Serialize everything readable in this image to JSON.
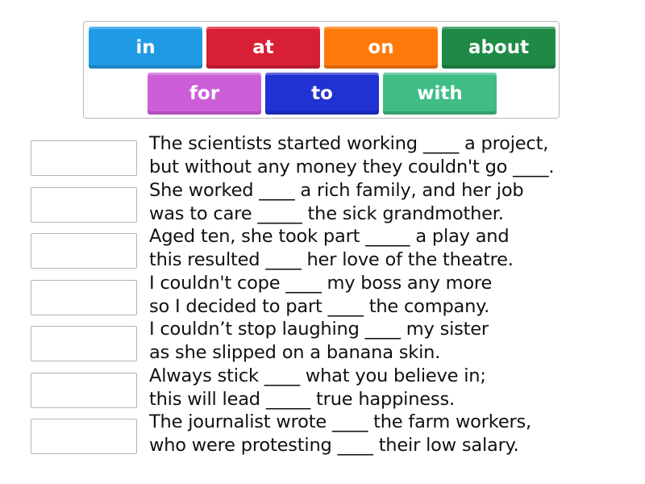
{
  "word_bank": [
    {
      "label": "in",
      "color": "#1f9be6"
    },
    {
      "label": "at",
      "color": "#d81f35"
    },
    {
      "label": "on",
      "color": "#ff7a0a"
    },
    {
      "label": "about",
      "color": "#1e8a45"
    },
    {
      "label": "for",
      "color": "#cc5fd8"
    },
    {
      "label": "to",
      "color": "#2032d2"
    },
    {
      "label": "with",
      "color": "#3fbd85"
    }
  ],
  "sentences": [
    {
      "line1": "The scientists started working ____ a project,",
      "line2": "but without any money they couldn't go ____."
    },
    {
      "line1": "She worked ____ a rich family, and her job",
      "line2": "was to care _____ the sick grandmother."
    },
    {
      "line1": "Aged ten, she took part _____ a play and",
      "line2": "this resulted ____ her love of the theatre."
    },
    {
      "line1": "I couldn't cope ____ my boss any more",
      "line2": "so I decided to part ____ the company."
    },
    {
      "line1": "I couldn’t stop laughing ____ my sister",
      "line2": "as she slipped on a banana skin."
    },
    {
      "line1": "Always stick ____ what you believe in;",
      "line2": "this will lead _____ true happiness."
    },
    {
      "line1": "The journalist wrote ____ the farm workers,",
      "line2": "who were protesting ____ their low salary."
    }
  ]
}
